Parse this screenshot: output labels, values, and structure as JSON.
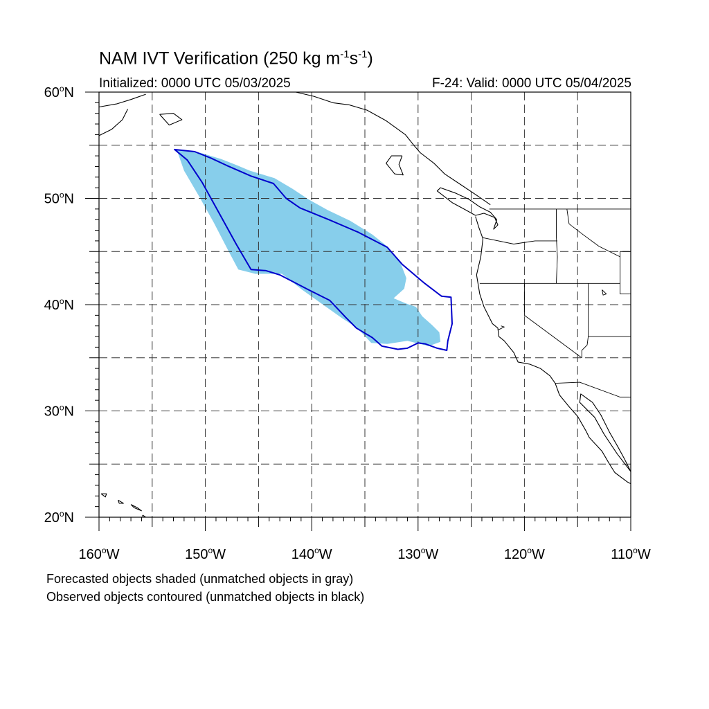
{
  "header": {
    "title_main": "NAM IVT Verification (250 kg m",
    "title_exp1": "-1",
    "title_mid": "s",
    "title_exp2": "-1",
    "title_end": ")",
    "initialized": "Initialized: 0000 UTC 05/03/2025",
    "valid": "F-24: Valid: 0000 UTC 05/04/2025"
  },
  "map": {
    "lat_range": [
      20,
      60
    ],
    "lon_range": [
      -160,
      -110
    ],
    "lat_labels": [
      {
        "deg": "60",
        "suffix": "N",
        "lat": 60
      },
      {
        "deg": "50",
        "suffix": "N",
        "lat": 50
      },
      {
        "deg": "40",
        "suffix": "N",
        "lat": 40
      },
      {
        "deg": "30",
        "suffix": "N",
        "lat": 30
      },
      {
        "deg": "20",
        "suffix": "N",
        "lat": 20
      }
    ],
    "lon_labels": [
      {
        "deg": "160",
        "suffix": "W",
        "lon": -160
      },
      {
        "deg": "150",
        "suffix": "W",
        "lon": -150
      },
      {
        "deg": "140",
        "suffix": "W",
        "lon": -140
      },
      {
        "deg": "130",
        "suffix": "W",
        "lon": -130
      },
      {
        "deg": "120",
        "suffix": "W",
        "lon": -120
      },
      {
        "deg": "110",
        "suffix": "W",
        "lon": -110
      }
    ],
    "grid_lats": [
      25,
      30,
      35,
      40,
      45,
      50,
      55
    ],
    "grid_lons": [
      -155,
      -150,
      -145,
      -140,
      -135,
      -130,
      -125,
      -120,
      -115
    ],
    "forecast_fill_color": "#87ceeb",
    "observed_contour_color": "#0000cc",
    "forecast_object": [
      [
        -152.7,
        54.6
      ],
      [
        -150.5,
        54.3
      ],
      [
        -148.5,
        53.7
      ],
      [
        -147.0,
        53.1
      ],
      [
        -145.8,
        52.6
      ],
      [
        -143.5,
        51.9
      ],
      [
        -141.8,
        50.9
      ],
      [
        -140.3,
        49.9
      ],
      [
        -138.5,
        48.9
      ],
      [
        -136.4,
        47.9
      ],
      [
        -134.3,
        46.6
      ],
      [
        -132.8,
        45.4
      ],
      [
        -131.6,
        43.8
      ],
      [
        -131.1,
        42.5
      ],
      [
        -131.3,
        41.5
      ],
      [
        -132.3,
        40.6
      ],
      [
        -131.1,
        40.1
      ],
      [
        -130.2,
        39.8
      ],
      [
        -129.6,
        38.9
      ],
      [
        -128.7,
        38.1
      ],
      [
        -128.0,
        37.4
      ],
      [
        -127.9,
        36.5
      ],
      [
        -129.0,
        36.1
      ],
      [
        -131.0,
        36.6
      ],
      [
        -132.9,
        36.3
      ],
      [
        -134.4,
        36.4
      ],
      [
        -135.7,
        37.8
      ],
      [
        -137.1,
        38.7
      ],
      [
        -138.8,
        39.9
      ],
      [
        -140.9,
        41.4
      ],
      [
        -142.8,
        42.9
      ],
      [
        -145.3,
        42.9
      ],
      [
        -146.9,
        43.3
      ],
      [
        -147.8,
        45.0
      ],
      [
        -149.2,
        47.7
      ],
      [
        -150.6,
        50.2
      ],
      [
        -152.0,
        52.6
      ]
    ],
    "observed_object": [
      [
        -152.9,
        54.6
      ],
      [
        -151.0,
        54.4
      ],
      [
        -149.5,
        53.8
      ],
      [
        -148.0,
        53.1
      ],
      [
        -145.7,
        52.1
      ],
      [
        -143.6,
        51.4
      ],
      [
        -142.4,
        50.0
      ],
      [
        -141.1,
        49.1
      ],
      [
        -138.4,
        48.0
      ],
      [
        -135.6,
        46.8
      ],
      [
        -132.9,
        45.4
      ],
      [
        -131.5,
        43.8
      ],
      [
        -129.5,
        42.1
      ],
      [
        -127.8,
        40.8
      ],
      [
        -126.9,
        40.7
      ],
      [
        -126.8,
        38.2
      ],
      [
        -127.2,
        36.6
      ],
      [
        -127.3,
        35.7
      ],
      [
        -128.2,
        35.9
      ],
      [
        -129.3,
        36.3
      ],
      [
        -130.0,
        36.4
      ],
      [
        -131.0,
        35.9
      ],
      [
        -131.9,
        35.8
      ],
      [
        -133.4,
        36.1
      ],
      [
        -134.3,
        36.9
      ],
      [
        -135.8,
        37.8
      ],
      [
        -136.8,
        38.8
      ],
      [
        -138.3,
        40.4
      ],
      [
        -140.3,
        41.4
      ],
      [
        -143.0,
        42.8
      ],
      [
        -144.3,
        43.2
      ],
      [
        -145.7,
        43.3
      ],
      [
        -147.1,
        45.7
      ],
      [
        -148.7,
        48.6
      ],
      [
        -150.3,
        51.5
      ],
      [
        -151.7,
        53.6
      ]
    ],
    "coastlines": [
      [
        [
          -124.6,
          48.3
        ],
        [
          -124.3,
          47.3
        ],
        [
          -123.9,
          46.2
        ],
        [
          -124.1,
          44.5
        ],
        [
          -124.5,
          42.8
        ],
        [
          -124.2,
          41.0
        ],
        [
          -123.8,
          39.8
        ],
        [
          -123.0,
          38.2
        ],
        [
          -122.5,
          37.8
        ],
        [
          -122.4,
          37.0
        ],
        [
          -121.9,
          36.6
        ],
        [
          -121.0,
          35.5
        ],
        [
          -120.6,
          34.6
        ],
        [
          -119.5,
          34.4
        ],
        [
          -118.5,
          34.0
        ],
        [
          -117.6,
          33.3
        ],
        [
          -117.1,
          32.6
        ],
        [
          -116.7,
          31.5
        ],
        [
          -115.8,
          30.4
        ],
        [
          -115.0,
          29.5
        ],
        [
          -114.2,
          28.1
        ],
        [
          -113.9,
          27.5
        ],
        [
          -112.7,
          26.2
        ],
        [
          -112.0,
          25.0
        ],
        [
          -111.5,
          24.2
        ],
        [
          -110.3,
          23.3
        ],
        [
          -109.5,
          22.9
        ]
      ],
      [
        [
          -110.0,
          24.3
        ],
        [
          -110.6,
          25.5
        ],
        [
          -111.2,
          26.6
        ],
        [
          -112.0,
          28.0
        ],
        [
          -112.8,
          29.6
        ],
        [
          -113.6,
          30.8
        ],
        [
          -114.7,
          31.6
        ],
        [
          -114.8,
          30.8
        ],
        [
          -113.4,
          29.4
        ],
        [
          -112.5,
          27.8
        ],
        [
          -111.3,
          26.0
        ],
        [
          -110.0,
          24.3
        ]
      ],
      [
        [
          -124.6,
          48.4
        ],
        [
          -123.8,
          48.6
        ],
        [
          -122.8,
          48.2
        ],
        [
          -122.5,
          47.5
        ],
        [
          -122.9,
          47.1
        ],
        [
          -122.6,
          48.0
        ],
        [
          -123.2,
          48.7
        ],
        [
          -124.2,
          49.2
        ],
        [
          -125.2,
          49.9
        ],
        [
          -126.5,
          50.5
        ],
        [
          -127.9,
          51.0
        ],
        [
          -128.2,
          50.7
        ],
        [
          -126.8,
          49.6
        ],
        [
          -125.5,
          48.9
        ],
        [
          -124.6,
          48.4
        ]
      ],
      [
        [
          -123.2,
          49.4
        ],
        [
          -124.5,
          50.3
        ],
        [
          -126.0,
          51.3
        ],
        [
          -127.5,
          52.3
        ],
        [
          -128.5,
          53.3
        ],
        [
          -129.8,
          54.3
        ],
        [
          -130.4,
          55.0
        ],
        [
          -131.2,
          56.0
        ],
        [
          -133.0,
          57.3
        ],
        [
          -134.8,
          58.3
        ],
        [
          -136.5,
          58.8
        ],
        [
          -138.0,
          59.0
        ],
        [
          -139.8,
          59.6
        ],
        [
          -141.5,
          60.0
        ]
      ],
      [
        [
          -131.5,
          54.0
        ],
        [
          -132.5,
          54.0
        ],
        [
          -133.0,
          53.3
        ],
        [
          -132.2,
          52.3
        ],
        [
          -131.4,
          52.2
        ],
        [
          -131.8,
          53.2
        ],
        [
          -131.5,
          54.0
        ]
      ],
      [
        [
          -160.0,
          55.9
        ],
        [
          -158.8,
          56.5
        ],
        [
          -157.8,
          57.4
        ],
        [
          -157.3,
          58.4
        ]
      ],
      [
        [
          -160.0,
          58.6
        ],
        [
          -158.3,
          58.9
        ],
        [
          -157.0,
          59.3
        ],
        [
          -155.6,
          59.8
        ]
      ],
      [
        [
          -154.3,
          57.9
        ],
        [
          -153.0,
          58.0
        ],
        [
          -152.2,
          57.4
        ],
        [
          -153.4,
          56.9
        ],
        [
          -154.3,
          57.9
        ]
      ],
      [
        [
          -110.0,
          59.4
        ],
        [
          -109.0,
          59.6
        ]
      ],
      [
        [
          -159.8,
          22.2
        ],
        [
          -159.3,
          22.2
        ],
        [
          -159.4,
          21.9
        ],
        [
          -159.8,
          22.2
        ]
      ],
      [
        [
          -158.2,
          21.6
        ],
        [
          -157.7,
          21.3
        ],
        [
          -158.1,
          21.3
        ],
        [
          -158.2,
          21.6
        ]
      ],
      [
        [
          -157.0,
          21.2
        ],
        [
          -156.7,
          20.9
        ],
        [
          -156.0,
          20.6
        ],
        [
          -156.4,
          20.9
        ],
        [
          -157.0,
          21.2
        ]
      ],
      [
        [
          -155.9,
          20.2
        ],
        [
          -155.0,
          19.6
        ],
        [
          -155.7,
          19.0
        ],
        [
          -155.9,
          20.2
        ]
      ]
    ],
    "political_lines": [
      [
        [
          -123.3,
          49.0
        ],
        [
          -110.0,
          49.0
        ]
      ],
      [
        [
          -124.2,
          42.0
        ],
        [
          -111.0,
          42.0
        ]
      ],
      [
        [
          -120.0,
          42.0
        ],
        [
          -120.0,
          39.0
        ],
        [
          -114.6,
          35.0
        ]
      ],
      [
        [
          -117.0,
          49.0
        ],
        [
          -117.0,
          46.4
        ],
        [
          -116.9,
          44.5
        ],
        [
          -117.0,
          42.0
        ]
      ],
      [
        [
          -123.9,
          46.3
        ],
        [
          -121.0,
          45.7
        ],
        [
          -119.0,
          46.0
        ],
        [
          -116.9,
          46.0
        ]
      ],
      [
        [
          -114.0,
          42.0
        ],
        [
          -114.0,
          37.0
        ],
        [
          -114.1,
          36.2
        ],
        [
          -114.6,
          35.7
        ],
        [
          -114.6,
          35.0
        ]
      ],
      [
        [
          -114.0,
          37.0
        ],
        [
          -110.0,
          37.0
        ]
      ],
      [
        [
          -117.1,
          32.6
        ],
        [
          -114.8,
          32.7
        ],
        [
          -111.0,
          31.3
        ],
        [
          -110.0,
          31.3
        ]
      ],
      [
        [
          -116.0,
          49.0
        ],
        [
          -115.8,
          47.6
        ],
        [
          -114.5,
          46.6
        ],
        [
          -113.0,
          45.5
        ],
        [
          -111.0,
          44.5
        ]
      ],
      [
        [
          -111.0,
          45.0
        ],
        [
          -110.0,
          45.0
        ]
      ],
      [
        [
          -111.0,
          45.0
        ],
        [
          -111.0,
          41.0
        ],
        [
          -110.0,
          41.0
        ]
      ],
      [
        [
          -122.5,
          37.6
        ],
        [
          -121.9,
          37.9
        ],
        [
          -122.2,
          38.0
        ]
      ],
      [
        [
          -112.7,
          41.4
        ],
        [
          -112.3,
          41.0
        ],
        [
          -112.6,
          40.9
        ],
        [
          -112.7,
          41.4
        ]
      ]
    ]
  },
  "footer": {
    "note1": "Forecasted objects shaded (unmatched objects in gray)",
    "note2": "Observed objects contoured (unmatched objects in black)"
  }
}
